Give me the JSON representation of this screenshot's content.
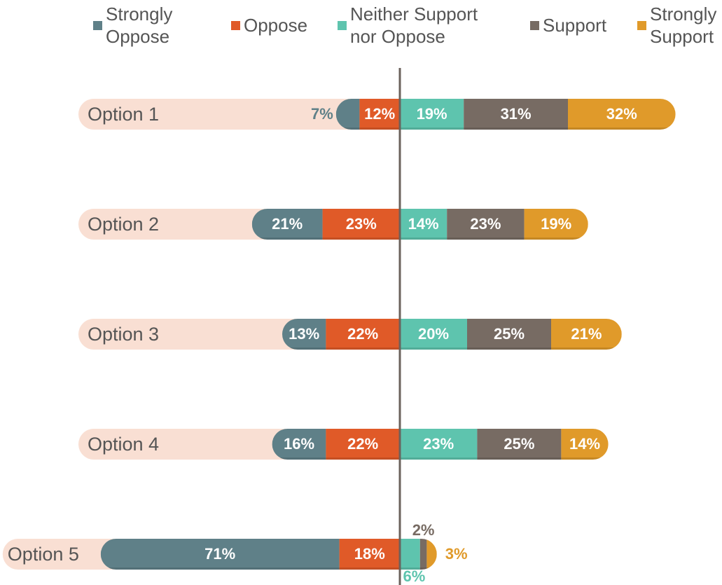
{
  "chart_data": {
    "type": "diverging-bar",
    "categories": [
      "Option 1",
      "Option 2",
      "Option 3",
      "Option 4",
      "Option 5"
    ],
    "series": [
      {
        "name": "Strongly Oppose",
        "color": "#5f8088",
        "values": [
          7,
          21,
          13,
          16,
          71
        ],
        "value_labels": [
          "7%",
          "21%",
          "13%",
          "16%",
          "71%"
        ]
      },
      {
        "name": "Oppose",
        "color": "#e05a28",
        "values": [
          12,
          23,
          22,
          22,
          18
        ],
        "value_labels": [
          "12%",
          "23%",
          "22%",
          "22%",
          "18%"
        ]
      },
      {
        "name": "Neither Support nor Oppose",
        "color": "#5ec4ae",
        "values": [
          19,
          14,
          20,
          23,
          6
        ],
        "value_labels": [
          "19%",
          "14%",
          "20%",
          "23%",
          "6%"
        ]
      },
      {
        "name": "Support",
        "color": "#776b63",
        "values": [
          31,
          23,
          25,
          25,
          2
        ],
        "value_labels": [
          "31%",
          "23%",
          "25%",
          "25%",
          "2%"
        ]
      },
      {
        "name": "Strongly Support",
        "color": "#e09a2a",
        "values": [
          32,
          19,
          21,
          14,
          3
        ],
        "value_labels": [
          "32%",
          "19%",
          "21%",
          "14%",
          "3%"
        ]
      }
    ]
  }
}
